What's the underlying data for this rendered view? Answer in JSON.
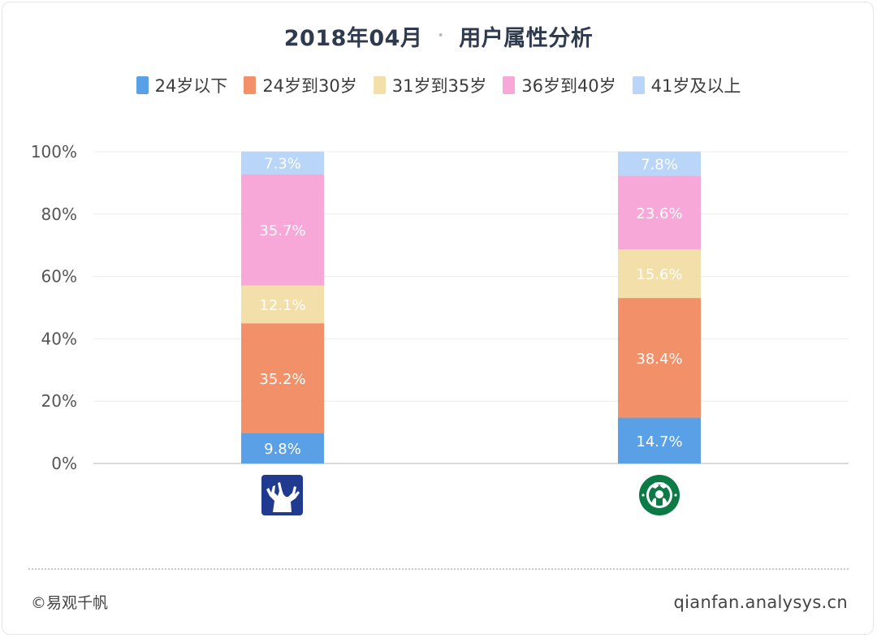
{
  "title": {
    "date": "2018年04月",
    "separator": "•",
    "subject": "用户属性分析"
  },
  "colors": {
    "under_24": "#5aa0e6",
    "24_to_30": "#f2906a",
    "31_to_35": "#f2dfaa",
    "36_to_40": "#f7a8d8",
    "over_41": "#b9d5f7",
    "grid": "#ececec",
    "axis": "#cfcfcf"
  },
  "chart_data": {
    "type": "bar",
    "stacked": true,
    "categories": [
      "deer-brand-logo",
      "starbucks-logo"
    ],
    "category_icons": [
      "deer-logo-icon",
      "starbucks-siren-logo-icon"
    ],
    "series": [
      {
        "name": "24岁以下",
        "values": [
          9.8,
          14.7
        ],
        "labels": [
          "9.8%",
          "14.7%"
        ]
      },
      {
        "name": "24岁到30岁",
        "values": [
          35.2,
          38.4
        ],
        "labels": [
          "35.2%",
          "38.4%"
        ]
      },
      {
        "name": "31岁到35岁",
        "values": [
          12.1,
          15.6
        ],
        "labels": [
          "12.1%",
          "15.6%"
        ]
      },
      {
        "name": "36岁到40岁",
        "values": [
          35.7,
          23.6
        ],
        "labels": [
          "35.7%",
          "23.6%"
        ]
      },
      {
        "name": "41岁及以上",
        "values": [
          7.3,
          7.8
        ],
        "labels": [
          "7.3%",
          "7.8%"
        ]
      }
    ],
    "yticks": [
      "0%",
      "20%",
      "40%",
      "60%",
      "80%",
      "100%"
    ],
    "ylim": [
      0,
      100
    ],
    "grid": true,
    "legend_position": "top"
  },
  "footer": {
    "source": "©易观千帆",
    "url": "qianfan.analysys.cn"
  }
}
